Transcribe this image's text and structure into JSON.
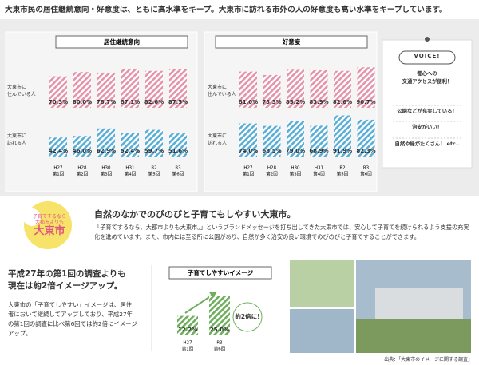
{
  "headline": "大東市民の居住継続意向・好意度は、ともに高水準をキープ。大東市に訪れる市外の人の好意度も高い水準をキープしています。",
  "chart_data": [
    {
      "type": "bar",
      "title": "居住継続意向",
      "categories": [
        [
          "H27",
          "第1回"
        ],
        [
          "H28",
          "第2回"
        ],
        [
          "H30",
          "第3回"
        ],
        [
          "H31",
          "第4回"
        ],
        [
          "R2",
          "第5回"
        ],
        [
          "R3",
          "第6回"
        ]
      ],
      "ylim": [
        0,
        100
      ],
      "series": [
        {
          "name": "大東市に\n住んでいる人",
          "color": "#e394ab",
          "values": [
            70.3,
            80.0,
            78.7,
            87.1,
            82.6,
            87.5
          ],
          "value_labels": [
            "70.3%",
            "80.0%",
            "78.7%",
            "87.1%",
            "82.6%",
            "87.5%"
          ]
        },
        {
          "name": "大東市に\n訪れる人",
          "color": "#5aaed6",
          "values": [
            42.4,
            46.0,
            62.9,
            52.4,
            59.7,
            51.6
          ],
          "value_labels": [
            "42.4%",
            "46.0%",
            "62.9%",
            "52.4%",
            "59.7%",
            "51.6%"
          ]
        }
      ]
    },
    {
      "type": "bar",
      "title": "好意度",
      "categories": [
        [
          "H27",
          "第1回"
        ],
        [
          "H28",
          "第2回"
        ],
        [
          "H30",
          "第3回"
        ],
        [
          "H31",
          "第4回"
        ],
        [
          "R2",
          "第5回"
        ],
        [
          "R3",
          "第6回"
        ]
      ],
      "ylim": [
        0,
        100
      ],
      "series": [
        {
          "name": "大東市に\n住んでいる人",
          "color": "#e394ab",
          "values": [
            81.0,
            73.3,
            85.2,
            83.9,
            82.6,
            90.7
          ],
          "value_labels": [
            "81.0%",
            "73.3%",
            "85.2%",
            "83.9%",
            "82.6%",
            "90.7%"
          ]
        },
        {
          "name": "大東市に\n訪れる人",
          "color": "#5aaed6",
          "values": [
            74.0,
            68.5,
            79.0,
            68.9,
            91.9,
            82.3
          ],
          "value_labels": [
            "74.0%",
            "68.5%",
            "79.0%",
            "68.9%",
            "91.9%",
            "82.3%"
          ]
        }
      ]
    },
    {
      "type": "bar",
      "title": "子育てしやすいイメージ",
      "categories": [
        [
          "H27",
          "第1回"
        ],
        [
          "R3",
          "第6回"
        ]
      ],
      "ylim": [
        0,
        30
      ],
      "annotation": "約2倍に!",
      "series": [
        {
          "color": "#6fae5c",
          "values": [
            12.2,
            25.0
          ],
          "value_labels": [
            "12.2%",
            "25.0%"
          ]
        }
      ]
    }
  ],
  "voice": {
    "title": "VOICE!",
    "items": [
      "都心への\n交通アクセスが便利！",
      "公園などが充実している！",
      "治安がいい！",
      "自然や緑がたくさん！ etc.."
    ]
  },
  "logo": [
    "子育て",
    "するなら",
    "大都市",
    "よりも",
    "大東市"
  ],
  "section": {
    "heading": "自然のなかでのびのびと子育てもしやすい大東市。",
    "body": "「子育てするなら、大都市よりも大東市。」というブランドメッセージを打ち出してきた大東市では、安心して子育てを続けられるよう支援の充実化を進めています。また、市内には至る所に公園があり、自然が多く治安の良い環境でのびのびと子育てすることができます。"
  },
  "summary": {
    "heading": "平成27年の第1回の調査よりも\n現在は約2倍イメージアップ。",
    "body": "大東市の「子育てしやすい」イメージは、居住者において継続してアップしており、平成27年の第1回の調査に比べ第6回では約2倍にイメージアップ。"
  },
  "source": "出典：「大東市のイメージに関する調査」"
}
